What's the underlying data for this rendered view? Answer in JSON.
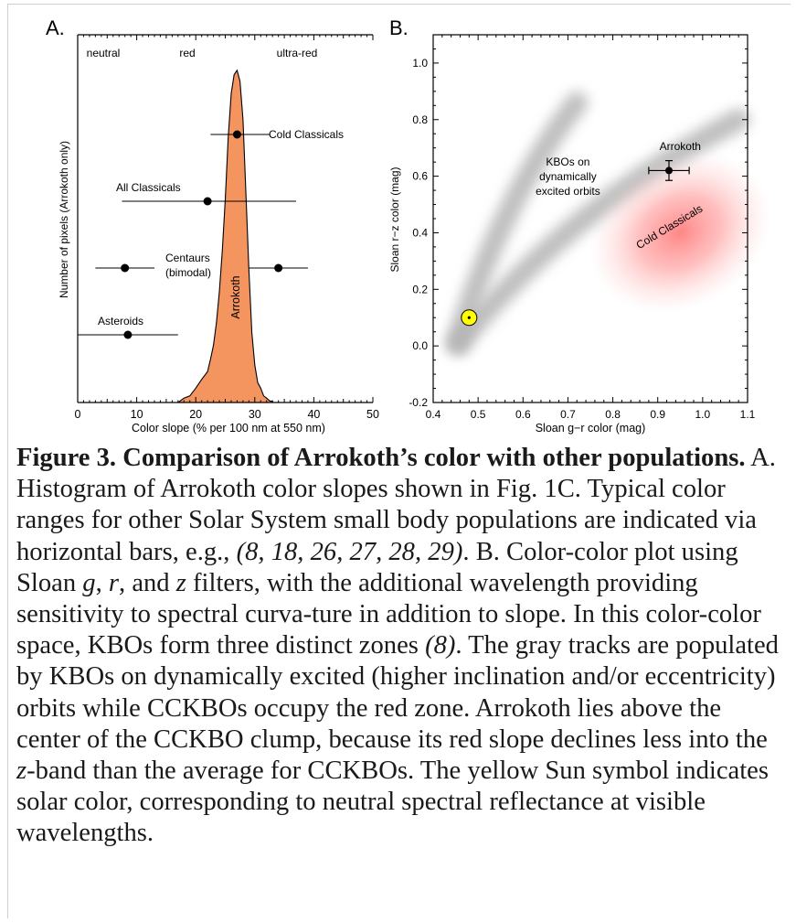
{
  "chart_data": [
    {
      "panel_label": "A.",
      "type": "area",
      "xlabel": "Color slope (% per 100 nm at 550 nm)",
      "ylabel": "Number of pixels (Arrokoth only)",
      "xlim": [
        0,
        50
      ],
      "xticks": [
        "0",
        "10",
        "20",
        "30",
        "40",
        "50"
      ],
      "color_zones": [
        "neutral",
        "red",
        "ultra-red"
      ],
      "histogram": {
        "name": "Arrokoth",
        "color": "#f4955f",
        "x": [
          17,
          18,
          19,
          20,
          21,
          22,
          22.5,
          23,
          23.5,
          24,
          24.5,
          25,
          25.5,
          26,
          26.5,
          27,
          27.5,
          28,
          28.5,
          29,
          29.5,
          30,
          30.5,
          31,
          31.5,
          32,
          32.5,
          33
        ],
        "y": [
          0,
          0.01,
          0.02,
          0.04,
          0.07,
          0.09,
          0.13,
          0.17,
          0.24,
          0.33,
          0.46,
          0.61,
          0.8,
          0.93,
          0.99,
          1.0,
          0.97,
          0.85,
          0.63,
          0.4,
          0.21,
          0.11,
          0.06,
          0.04,
          0.02,
          0.01,
          0.005,
          0
        ]
      },
      "ranges": [
        {
          "label": "Cold Classicals",
          "center": 27,
          "min": 22.5,
          "max": 32.5
        },
        {
          "label": "All Classicals",
          "center": 22,
          "min": 7.5,
          "max": 37
        },
        {
          "label": "Centaurs\n(bimodal)",
          "center": 8,
          "min": 3,
          "max": 13
        },
        {
          "label": "",
          "center": 34,
          "min": 29,
          "max": 39
        },
        {
          "label": "Asteroids",
          "center": 8.5,
          "min": 0,
          "max": 17
        }
      ]
    },
    {
      "panel_label": "B.",
      "type": "scatter",
      "xlabel": "Sloan g−r color (mag)",
      "ylabel": "Sloan r−z color (mag)",
      "xlim": [
        0.4,
        1.1
      ],
      "ylim": [
        -0.2,
        1.1
      ],
      "xticks": [
        "0.4",
        "0.5",
        "0.6",
        "0.7",
        "0.8",
        "0.9",
        "1.0",
        "1.1"
      ],
      "yticks": [
        "-0.2",
        "0.0",
        "0.2",
        "0.4",
        "0.6",
        "0.8",
        "1.0"
      ],
      "zones": [
        {
          "label": "KBOs on\ndynamically\nexcited orbits",
          "color": "#b4b4b4"
        },
        {
          "label": "Cold Classicals",
          "color": "#ff8c8c"
        }
      ],
      "points": [
        {
          "label": "Arrokoth",
          "x": 0.925,
          "y": 0.62,
          "xerr": 0.045,
          "yerr": 0.035
        },
        {
          "label": "",
          "marker": "sun",
          "color": "#ffff00",
          "x": 0.48,
          "y": 0.1
        }
      ]
    }
  ],
  "caption": {
    "title": "Figure 3.  Comparison of Arrokoth’s color with other populations.",
    "segments": [
      {
        "t": "A. Histogram of Arrokoth color slopes shown in Fig. 1C.  Typical color ranges for other Solar System small body populations are indicated via horizontal bars, e.g., "
      },
      {
        "t": "(8, 18, 26, 27, 28, 29)",
        "i": true
      },
      {
        "t": ".  B. Color-color plot using Sloan "
      },
      {
        "t": "g",
        "i": true
      },
      {
        "t": ", "
      },
      {
        "t": "r",
        "i": true
      },
      {
        "t": ", and "
      },
      {
        "t": "z",
        "i": true
      },
      {
        "t": " filters, with the additional wavelength providing sensitivity to spectral curva-ture in addition to slope.  In this color-color space, KBOs form three distinct zones "
      },
      {
        "t": "(8)",
        "i": true
      },
      {
        "t": ".  The gray tracks are populated by KBOs on dynamically excited (higher inclination and/or eccentricity) orbits while CCKBOs occupy the red zone.  Arrokoth lies above the center of the CCKBO clump, because its red slope declines less into the "
      },
      {
        "t": "z",
        "i": true
      },
      {
        "t": "-band than the average for CCKBOs.  The yellow Sun symbol indicates solar color, corresponding to neutral spectral reflectance at visible wavelengths."
      }
    ]
  }
}
